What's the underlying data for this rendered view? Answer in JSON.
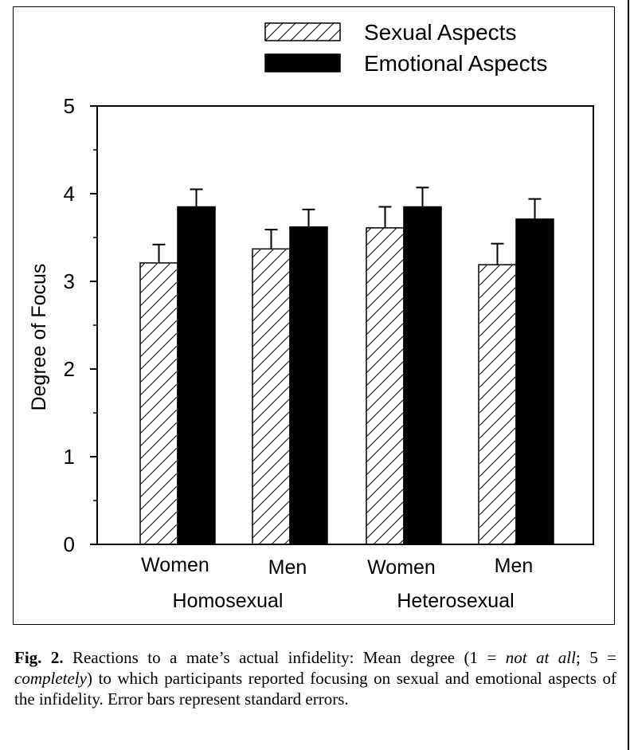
{
  "chart_data": {
    "type": "bar",
    "ylabel": "Degree of Focus",
    "ylim": [
      0,
      5
    ],
    "yticks": [
      0,
      1,
      2,
      3,
      4,
      5
    ],
    "categories": [
      "Women",
      "Men",
      "Women",
      "Men"
    ],
    "groups": [
      {
        "label": "Homosexual",
        "categories": [
          "Women",
          "Men"
        ]
      },
      {
        "label": "Heterosexual",
        "categories": [
          "Women",
          "Men"
        ]
      }
    ],
    "series": [
      {
        "name": "Sexual Aspects",
        "pattern": "hatched",
        "values": [
          3.21,
          3.37,
          3.61,
          3.19
        ],
        "errors": [
          0.21,
          0.22,
          0.24,
          0.24
        ]
      },
      {
        "name": "Emotional Aspects",
        "pattern": "solid",
        "values": [
          3.85,
          3.62,
          3.85,
          3.71
        ],
        "errors": [
          0.2,
          0.2,
          0.22,
          0.23
        ]
      }
    ],
    "legend_position": "top-right",
    "grid": false,
    "error_bars": "standard errors"
  },
  "caption": {
    "label": "Fig. 2.",
    "text_1": " Reactions to a mate’s actual infidelity: Mean degree (1 = ",
    "em_1": "not at all",
    "text_2": "; 5 = ",
    "em_2": "completely",
    "text_3": ") to which participants reported focusing on sexual and emotional aspects of the infidelity. Error bars represent standard errors."
  },
  "colors": {
    "bar_solid": "#000000",
    "hatch": "#000000",
    "background": "#ffffff"
  }
}
